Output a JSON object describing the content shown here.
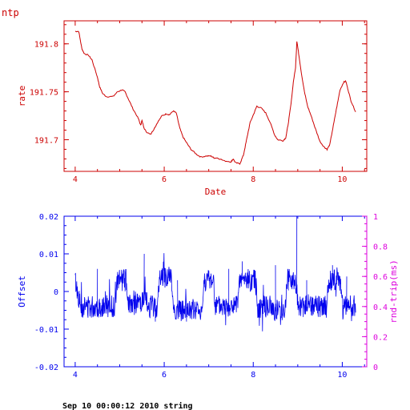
{
  "chart_data": [
    {
      "type": "line",
      "title": "ntp",
      "xlabel": "Date",
      "ylabel": "rate",
      "xlim": [
        3.75,
        10.55
      ],
      "ylim": [
        191.667,
        191.824
      ],
      "xticks": [
        4,
        6,
        8,
        10
      ],
      "yticks": [
        191.7,
        191.75,
        191.8
      ],
      "colors": {
        "frame": "#cc0000",
        "series": "#cc0000"
      },
      "series": [
        {
          "values": [
            [
              4.0,
              191.813
            ],
            [
              4.08,
              191.813
            ],
            [
              4.15,
              191.795
            ],
            [
              4.2,
              191.79
            ],
            [
              4.3,
              191.788
            ],
            [
              4.38,
              191.783
            ],
            [
              4.5,
              191.765
            ],
            [
              4.55,
              191.755
            ],
            [
              4.62,
              191.748
            ],
            [
              4.7,
              191.745
            ],
            [
              4.85,
              191.745
            ],
            [
              4.95,
              191.75
            ],
            [
              5.05,
              191.752
            ],
            [
              5.12,
              191.75
            ],
            [
              5.2,
              191.742
            ],
            [
              5.3,
              191.732
            ],
            [
              5.42,
              191.722
            ],
            [
              5.47,
              191.715
            ],
            [
              5.5,
              191.72
            ],
            [
              5.55,
              191.712
            ],
            [
              5.6,
              191.708
            ],
            [
              5.7,
              191.706
            ],
            [
              5.78,
              191.712
            ],
            [
              5.85,
              191.718
            ],
            [
              5.95,
              191.725
            ],
            [
              6.05,
              191.727
            ],
            [
              6.12,
              191.726
            ],
            [
              6.2,
              191.73
            ],
            [
              6.27,
              191.728
            ],
            [
              6.35,
              191.712
            ],
            [
              6.42,
              191.703
            ],
            [
              6.5,
              191.697
            ],
            [
              6.6,
              191.69
            ],
            [
              6.72,
              191.685
            ],
            [
              6.82,
              191.682
            ],
            [
              6.95,
              191.683
            ],
            [
              7.05,
              191.683
            ],
            [
              7.12,
              191.681
            ],
            [
              7.2,
              191.681
            ],
            [
              7.35,
              191.678
            ],
            [
              7.5,
              191.677
            ],
            [
              7.55,
              191.68
            ],
            [
              7.6,
              191.676
            ],
            [
              7.7,
              191.675
            ],
            [
              7.78,
              191.684
            ],
            [
              7.85,
              191.7
            ],
            [
              7.93,
              191.718
            ],
            [
              8.02,
              191.728
            ],
            [
              8.08,
              191.735
            ],
            [
              8.18,
              191.733
            ],
            [
              8.28,
              191.728
            ],
            [
              8.38,
              191.718
            ],
            [
              8.48,
              191.705
            ],
            [
              8.55,
              191.7
            ],
            [
              8.67,
              191.699
            ],
            [
              8.73,
              191.702
            ],
            [
              8.78,
              191.715
            ],
            [
              8.85,
              191.738
            ],
            [
              8.9,
              191.76
            ],
            [
              8.95,
              191.775
            ],
            [
              8.98,
              191.803
            ],
            [
              9.02,
              191.79
            ],
            [
              9.08,
              191.77
            ],
            [
              9.15,
              191.75
            ],
            [
              9.22,
              191.735
            ],
            [
              9.3,
              191.725
            ],
            [
              9.4,
              191.711
            ],
            [
              9.5,
              191.698
            ],
            [
              9.6,
              191.692
            ],
            [
              9.66,
              191.69
            ],
            [
              9.72,
              191.695
            ],
            [
              9.8,
              191.715
            ],
            [
              9.88,
              191.735
            ],
            [
              9.95,
              191.752
            ],
            [
              10.03,
              191.76
            ],
            [
              10.08,
              191.761
            ],
            [
              10.13,
              191.752
            ],
            [
              10.2,
              191.74
            ],
            [
              10.3,
              191.729
            ]
          ]
        }
      ]
    },
    {
      "type": "line",
      "xlabel": "",
      "ylabel": "Offset",
      "ylabel_right": "rnd-trip(ms)",
      "xlim": [
        3.75,
        10.55
      ],
      "ylim": [
        -0.02,
        0.02
      ],
      "ylim_right": [
        0,
        1
      ],
      "xticks": [
        4,
        6,
        8,
        10
      ],
      "yticks": [
        "0.02",
        "0.01",
        "0",
        "-0.01",
        "-0.02"
      ],
      "yticks_right": [
        "1",
        "0.8",
        "0.6",
        "0.4",
        "0.2",
        "0"
      ],
      "colors": {
        "frame": "#0000ee",
        "series": "#0000ee",
        "right_axis": "#dd00dd"
      },
      "series": [
        {
          "band_levels": [
            [
              4.0,
              0.003
            ],
            [
              4.12,
              -0.004
            ],
            [
              4.9,
              -0.004
            ],
            [
              4.95,
              0.003
            ],
            [
              5.15,
              0.003
            ],
            [
              5.2,
              -0.003
            ],
            [
              5.6,
              -0.003
            ],
            [
              5.65,
              -0.004
            ],
            [
              5.85,
              -0.004
            ],
            [
              5.9,
              0.004
            ],
            [
              6.15,
              0.004
            ],
            [
              6.22,
              -0.005
            ],
            [
              6.85,
              -0.005
            ],
            [
              6.9,
              0.003
            ],
            [
              7.1,
              0.003
            ],
            [
              7.15,
              -0.004
            ],
            [
              7.65,
              -0.004
            ],
            [
              7.7,
              0.003
            ],
            [
              8.05,
              0.003
            ],
            [
              8.1,
              -0.004
            ],
            [
              8.4,
              -0.004
            ],
            [
              8.45,
              -0.005
            ],
            [
              8.72,
              -0.005
            ],
            [
              8.76,
              0.003
            ],
            [
              8.95,
              0.003
            ],
            [
              9.02,
              -0.004
            ],
            [
              9.65,
              -0.004
            ],
            [
              9.7,
              0.003
            ],
            [
              9.95,
              0.003
            ],
            [
              10.02,
              -0.004
            ],
            [
              10.3,
              -0.004
            ]
          ],
          "spikes": [
            [
              4.5,
              0.006
            ],
            [
              5.55,
              0.01
            ],
            [
              5.8,
              -0.008
            ],
            [
              6.3,
              0.003
            ],
            [
              6.5,
              -0.008
            ],
            [
              7.45,
              0.006
            ],
            [
              7.75,
              0.008
            ],
            [
              8.5,
              0.007
            ],
            [
              8.98,
              0.02
            ],
            [
              9.2,
              0.003
            ],
            [
              9.78,
              0.007
            ],
            [
              10.1,
              0.004
            ]
          ]
        }
      ]
    }
  ],
  "footer": "Sep 10 00:00:12 2010 string"
}
